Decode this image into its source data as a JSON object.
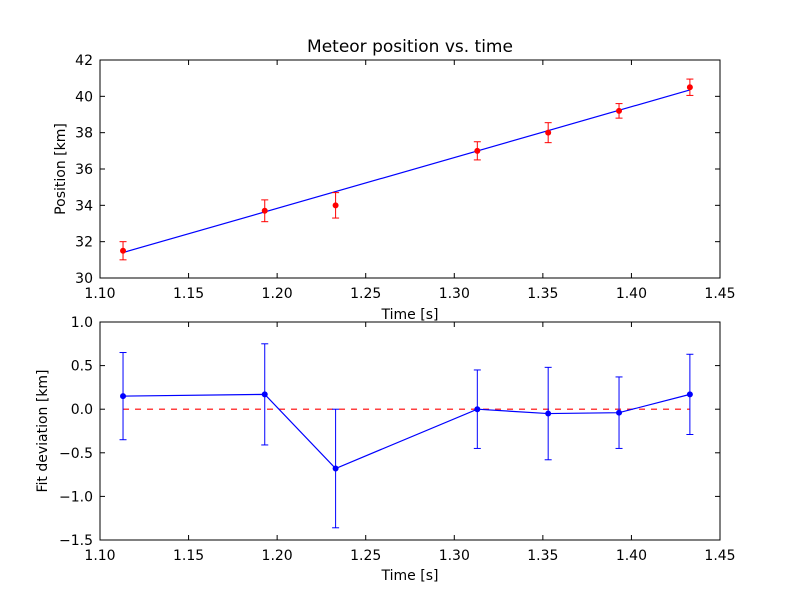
{
  "colors": {
    "fit_line": "#0000ff",
    "measurement": "#ff0000",
    "deviation": "#0000ff",
    "zero_line": "#ff0000"
  },
  "chart_data": [
    {
      "type": "scatter",
      "title": "Meteor position vs. time",
      "xlabel": "Time [s]",
      "ylabel": "Position [km]",
      "xlim": [
        1.1,
        1.45
      ],
      "ylim": [
        30,
        42
      ],
      "xticks": [
        "1.10",
        "1.15",
        "1.20",
        "1.25",
        "1.30",
        "1.35",
        "1.40",
        "1.45"
      ],
      "yticks": [
        "30",
        "32",
        "34",
        "36",
        "38",
        "40",
        "42"
      ],
      "grid": false,
      "series": [
        {
          "role": "measurements with error bars",
          "x": [
            1.113,
            1.193,
            1.233,
            1.313,
            1.353,
            1.393,
            1.433
          ],
          "y": [
            31.5,
            33.7,
            34.0,
            37.0,
            38.0,
            39.2,
            40.5
          ],
          "err": [
            0.5,
            0.6,
            0.7,
            0.5,
            0.55,
            0.4,
            0.45
          ]
        },
        {
          "role": "linear fit",
          "x": [
            1.113,
            1.433
          ],
          "y": [
            31.4,
            40.35
          ]
        }
      ]
    },
    {
      "type": "line",
      "title": "",
      "xlabel": "Time [s]",
      "ylabel": "Fit deviation [km]",
      "xlim": [
        1.1,
        1.45
      ],
      "ylim": [
        -1.5,
        1.0
      ],
      "xticks": [
        "1.10",
        "1.15",
        "1.20",
        "1.25",
        "1.30",
        "1.35",
        "1.40",
        "1.45"
      ],
      "yticks": [
        "1.0",
        "0.5",
        "0.0",
        "−0.5",
        "−1.0",
        "−1.5"
      ],
      "grid": false,
      "series": [
        {
          "role": "residuals with error bars",
          "x": [
            1.113,
            1.193,
            1.233,
            1.313,
            1.353,
            1.393,
            1.433
          ],
          "y": [
            0.15,
            0.17,
            -0.68,
            0.0,
            -0.05,
            -0.04,
            0.17
          ],
          "err": [
            0.5,
            0.58,
            0.68,
            0.45,
            0.53,
            0.41,
            0.46
          ]
        },
        {
          "role": "zero reference (dashed)",
          "x": [
            1.113,
            1.433
          ],
          "y": [
            0.0,
            0.0
          ]
        }
      ]
    }
  ]
}
